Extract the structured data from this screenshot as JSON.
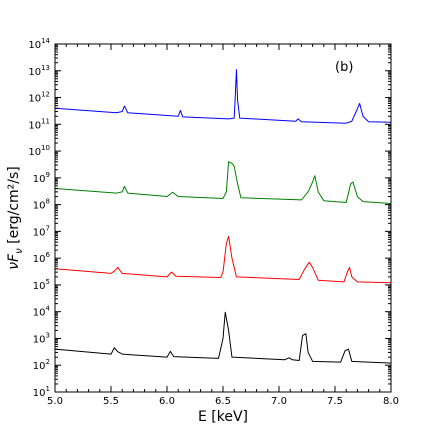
{
  "chart_data": {
    "type": "line",
    "panel_label": "(b)",
    "xlabel": "E [keV]",
    "ylabel_parts": {
      "main": "νF",
      "sub": "ν",
      "unit": " [erg/cm²/s]"
    },
    "xlim": [
      5.0,
      8.0
    ],
    "ylim": [
      10,
      100000000000000
    ],
    "yscale": "log",
    "grid": false,
    "x_ticks": [
      5.0,
      5.5,
      6.0,
      6.5,
      7.0,
      7.5,
      8.0
    ],
    "x_tick_labels": [
      "5.0",
      "5.5",
      "6.0",
      "6.5",
      "7.0",
      "7.5",
      "8.0"
    ],
    "y_ticks": [
      {
        "base": "10",
        "exp": "1"
      },
      {
        "base": "10",
        "exp": "2"
      },
      {
        "base": "10",
        "exp": "3"
      },
      {
        "base": "10",
        "exp": "4"
      },
      {
        "base": "10",
        "exp": "5"
      },
      {
        "base": "10",
        "exp": "6"
      },
      {
        "base": "10",
        "exp": "7"
      },
      {
        "base": "10",
        "exp": "8"
      },
      {
        "base": "10",
        "exp": "9"
      },
      {
        "base": "10",
        "exp": "10"
      },
      {
        "base": "10",
        "exp": "11"
      },
      {
        "base": "10",
        "exp": "12"
      },
      {
        "base": "10",
        "exp": "13"
      },
      {
        "base": "10",
        "exp": "14"
      }
    ],
    "series": [
      {
        "color": "#0000ff",
        "x": [
          5.0,
          5.55,
          5.6,
          5.62,
          5.65,
          6.1,
          6.12,
          6.14,
          6.55,
          6.6,
          6.61,
          6.62,
          6.63,
          6.65,
          7.15,
          7.17,
          7.2,
          7.6,
          7.65,
          7.7,
          7.72,
          7.75,
          7.8,
          8.0
        ],
        "y": [
          400000000000,
          270000000000,
          300000000000,
          480000000000,
          270000000000,
          200000000000,
          330000000000,
          190000000000,
          160000000000,
          170000000000,
          1200000000000,
          11000000000000,
          800000000000,
          170000000000,
          130000000000,
          160000000000,
          125000000000,
          110000000000,
          130000000000,
          380000000000,
          600000000000,
          200000000000,
          125000000000,
          120000000000
        ]
      },
      {
        "color": "#008000",
        "x": [
          5.0,
          5.55,
          5.6,
          5.62,
          5.65,
          6.0,
          6.05,
          6.1,
          6.5,
          6.53,
          6.55,
          6.58,
          6.6,
          6.63,
          6.66,
          7.2,
          7.26,
          7.3,
          7.32,
          7.35,
          7.4,
          7.6,
          7.64,
          7.66,
          7.7,
          7.75,
          8.0
        ],
        "y": [
          400000000,
          270000000,
          300000000,
          480000000,
          270000000,
          200000000,
          290000000,
          200000000,
          170000000,
          300000000,
          4000000000,
          3500000000,
          2700000000,
          600000000,
          180000000,
          150000000,
          300000000,
          700000000,
          1200000000,
          300000000,
          140000000,
          120000000,
          600000000,
          700000000,
          200000000,
          130000000,
          110000000
        ]
      },
      {
        "color": "#ff0000",
        "x": [
          5.0,
          5.5,
          5.53,
          5.56,
          5.6,
          6.0,
          6.04,
          6.08,
          6.48,
          6.5,
          6.53,
          6.55,
          6.58,
          6.62,
          7.18,
          7.23,
          7.27,
          7.3,
          7.35,
          7.58,
          7.61,
          7.63,
          7.65,
          7.7,
          8.0
        ],
        "y": [
          400000,
          270000,
          330000,
          450000,
          270000,
          200000,
          300000,
          210000,
          190000,
          300000,
          3500000,
          6500000,
          1000000,
          200000,
          160000,
          400000,
          700000,
          450000,
          150000,
          130000,
          300000,
          450000,
          200000,
          130000,
          120000
        ]
      },
      {
        "color": "#000000",
        "x": [
          5.0,
          5.5,
          5.53,
          5.56,
          5.6,
          6.0,
          6.03,
          6.06,
          6.46,
          6.5,
          6.52,
          6.55,
          6.58,
          7.05,
          7.09,
          7.12,
          7.18,
          7.21,
          7.24,
          7.26,
          7.3,
          7.55,
          7.59,
          7.62,
          7.65,
          8.0
        ],
        "y": [
          400,
          260,
          450,
          320,
          260,
          200,
          330,
          210,
          180,
          1000,
          9500,
          2000,
          200,
          160,
          190,
          160,
          150,
          1300,
          1500,
          300,
          140,
          130,
          350,
          400,
          140,
          120
        ]
      }
    ]
  }
}
